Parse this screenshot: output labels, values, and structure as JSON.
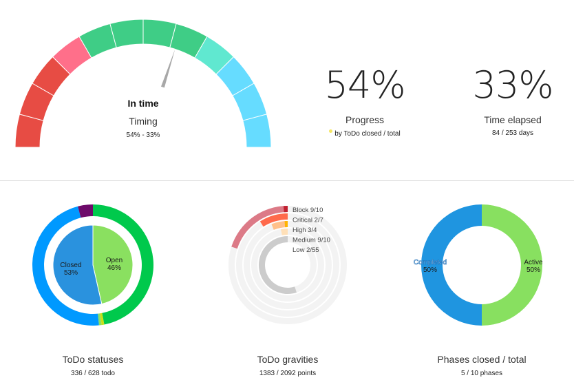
{
  "gauge": {
    "status": "In time",
    "label": "Timing",
    "sub": "54% - 33%",
    "needle_value": 0.6,
    "segments": [
      {
        "color": "#e74c44"
      },
      {
        "color": "#e74c44"
      },
      {
        "color": "#e74c44"
      },
      {
        "color": "#ff6f8a"
      },
      {
        "color": "#3fcd86"
      },
      {
        "color": "#3fcd86"
      },
      {
        "color": "#3fcd86"
      },
      {
        "color": "#3fcd86"
      },
      {
        "color": "#60e8d0"
      },
      {
        "color": "#66dcff"
      },
      {
        "color": "#66dcff"
      },
      {
        "color": "#66dcff"
      }
    ]
  },
  "progress": {
    "value": "54%",
    "label": "Progress",
    "sub": "by ToDo closed / total",
    "marker_color": "#f5e663"
  },
  "time_elapsed": {
    "value": "33%",
    "label": "Time elapsed",
    "sub": "84 / 253 days"
  },
  "statuses": {
    "title": "ToDo statuses",
    "sub": "336 / 628 todo",
    "inner": [
      {
        "name": "Closed",
        "pct": "53%",
        "value": 53,
        "color": "#2a92de"
      },
      {
        "name": "Open",
        "pct": "46%",
        "value": 46,
        "color": "#8ae060"
      }
    ],
    "outer": [
      {
        "value": 47,
        "color": "#00c94c"
      },
      {
        "value": 0.7,
        "color": "#c8e017"
      },
      {
        "value": 0.7,
        "color": "#8ae060"
      },
      {
        "value": 47.6,
        "color": "#0099ff"
      },
      {
        "value": 4,
        "color": "#6e0a6a"
      }
    ]
  },
  "gravities": {
    "title": "ToDo gravities",
    "sub": "1383 / 2092 points",
    "rings": [
      {
        "label": "Block 9/10",
        "fraction": 0.2,
        "color": "#dc7a87",
        "tip": "#c0202f"
      },
      {
        "label": "Critical 2/7",
        "fraction": 0.09,
        "color": "#ff6a4c",
        "tip": "#ff6a4c"
      },
      {
        "label": "High 3/4",
        "fraction": 0.06,
        "color": "#ffc08a",
        "tip": "#ffb400"
      },
      {
        "label": "Medium 9/10",
        "fraction": 0.03,
        "color": "#ffe0b8",
        "tip": "#ffe0b8"
      },
      {
        "label": "Low 2/55",
        "fraction": 0.55,
        "color": "#cccccc",
        "tip": "#cccccc"
      }
    ]
  },
  "phases": {
    "title": "Phases closed / total",
    "sub": "5 / 10 phases",
    "slices": [
      {
        "name": "Active",
        "pct": "50%",
        "value": 50,
        "color": "#88e060"
      },
      {
        "name": "Completed",
        "pct": "50%",
        "value": 50,
        "color": "#1f95e0"
      }
    ]
  }
}
